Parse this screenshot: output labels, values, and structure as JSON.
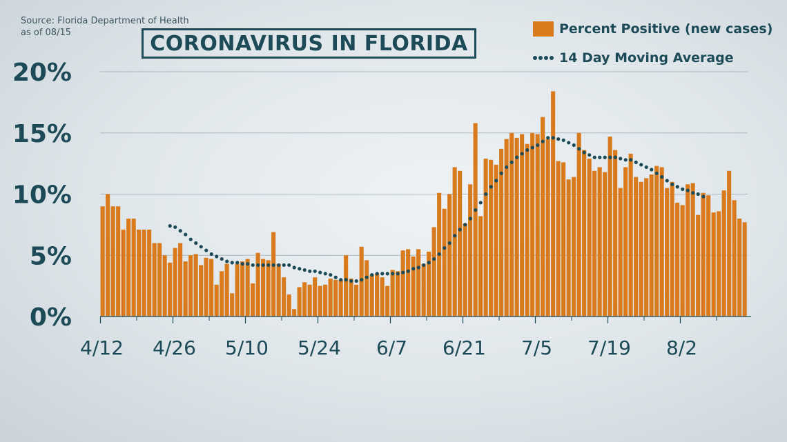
{
  "source": {
    "line1": "Source: Florida Department of Health",
    "line2": "as of 08/15"
  },
  "colors": {
    "bar": "#d97b1c",
    "dots": "#1d4a57",
    "text": "#1d4a57",
    "grid": "#aab8bf"
  },
  "chart_data": {
    "type": "bar",
    "title": "CORONAVIRUS IN FLORIDA",
    "xlabel": "",
    "ylabel": "",
    "ylim": [
      0,
      20
    ],
    "yticks": [
      "0%",
      "5%",
      "10%",
      "15%",
      "20%"
    ],
    "ytick_values": [
      0,
      5,
      10,
      15,
      20
    ],
    "grid": true,
    "legend_position": "top-right",
    "start_date": "4/12",
    "x_tick_labels": [
      "4/12",
      "4/26",
      "5/10",
      "5/24",
      "6/7",
      "6/21",
      "7/5",
      "7/19",
      "8/2"
    ],
    "x_tick_day_index": [
      0,
      14,
      28,
      42,
      56,
      70,
      84,
      98,
      112
    ],
    "series": [
      {
        "name": "Percent Positive (new cases)",
        "type": "bar",
        "values": [
          9.0,
          10.0,
          9.0,
          9.0,
          7.1,
          8.0,
          8.0,
          7.1,
          7.1,
          7.1,
          6.0,
          6.0,
          5.0,
          4.4,
          5.6,
          6.0,
          4.5,
          5.0,
          5.1,
          4.2,
          4.8,
          4.7,
          2.6,
          3.7,
          4.3,
          1.9,
          4.3,
          4.5,
          4.7,
          2.7,
          5.2,
          4.7,
          4.6,
          6.9,
          4.3,
          3.2,
          1.8,
          0.6,
          2.4,
          2.8,
          2.6,
          3.2,
          2.5,
          2.6,
          3.1,
          3.0,
          3.0,
          5.0,
          3.1,
          2.6,
          5.7,
          4.6,
          3.4,
          3.5,
          3.2,
          2.5,
          3.8,
          3.7,
          5.4,
          5.5,
          4.9,
          5.5,
          4.3,
          5.3,
          7.3,
          10.1,
          8.8,
          10.0,
          12.2,
          11.9,
          7.6,
          10.8,
          15.8,
          8.2,
          12.9,
          12.8,
          12.4,
          13.7,
          14.5,
          15.0,
          14.6,
          14.9,
          14.1,
          15.0,
          14.9,
          16.3,
          14.5,
          18.4,
          12.7,
          12.6,
          11.2,
          11.4,
          15.0,
          13.6,
          12.9,
          11.9,
          12.2,
          11.8,
          14.7,
          13.6,
          10.5,
          12.2,
          13.3,
          11.4,
          11.0,
          11.3,
          11.6,
          12.3,
          12.2,
          10.5,
          11.0,
          9.3,
          9.1,
          10.8,
          10.9,
          8.3,
          10.1,
          9.9,
          8.5,
          8.6,
          10.3,
          11.9,
          9.5,
          8.0,
          7.7
        ]
      },
      {
        "name": "14 Day Moving Average",
        "type": "dotted-line",
        "start_index": 13,
        "values": [
          7.4,
          7.3,
          7.0,
          6.7,
          6.3,
          6.0,
          5.7,
          5.4,
          5.1,
          4.9,
          4.7,
          4.5,
          4.4,
          4.4,
          4.3,
          4.3,
          4.2,
          4.2,
          4.2,
          4.2,
          4.2,
          4.2,
          4.2,
          4.2,
          4.0,
          3.9,
          3.8,
          3.7,
          3.7,
          3.6,
          3.5,
          3.4,
          3.2,
          3.0,
          3.0,
          2.9,
          2.9,
          3.0,
          3.2,
          3.4,
          3.5,
          3.5,
          3.5,
          3.5,
          3.5,
          3.6,
          3.7,
          3.9,
          4.0,
          4.2,
          4.4,
          4.7,
          5.1,
          5.6,
          6.0,
          6.6,
          7.1,
          7.5,
          8.0,
          8.7,
          9.3,
          10.0,
          10.6,
          11.1,
          11.7,
          12.2,
          12.6,
          13.0,
          13.3,
          13.6,
          13.8,
          14.0,
          14.3,
          14.6,
          14.6,
          14.5,
          14.4,
          14.2,
          14.0,
          13.7,
          13.4,
          13.2,
          13.0,
          13.0,
          13.0,
          13.0,
          13.0,
          12.9,
          12.8,
          12.8,
          12.6,
          12.4,
          12.2,
          12.0,
          11.7,
          11.4,
          11.1,
          10.8,
          10.6,
          10.4,
          10.3,
          10.1,
          10.0,
          9.8
        ]
      }
    ]
  }
}
